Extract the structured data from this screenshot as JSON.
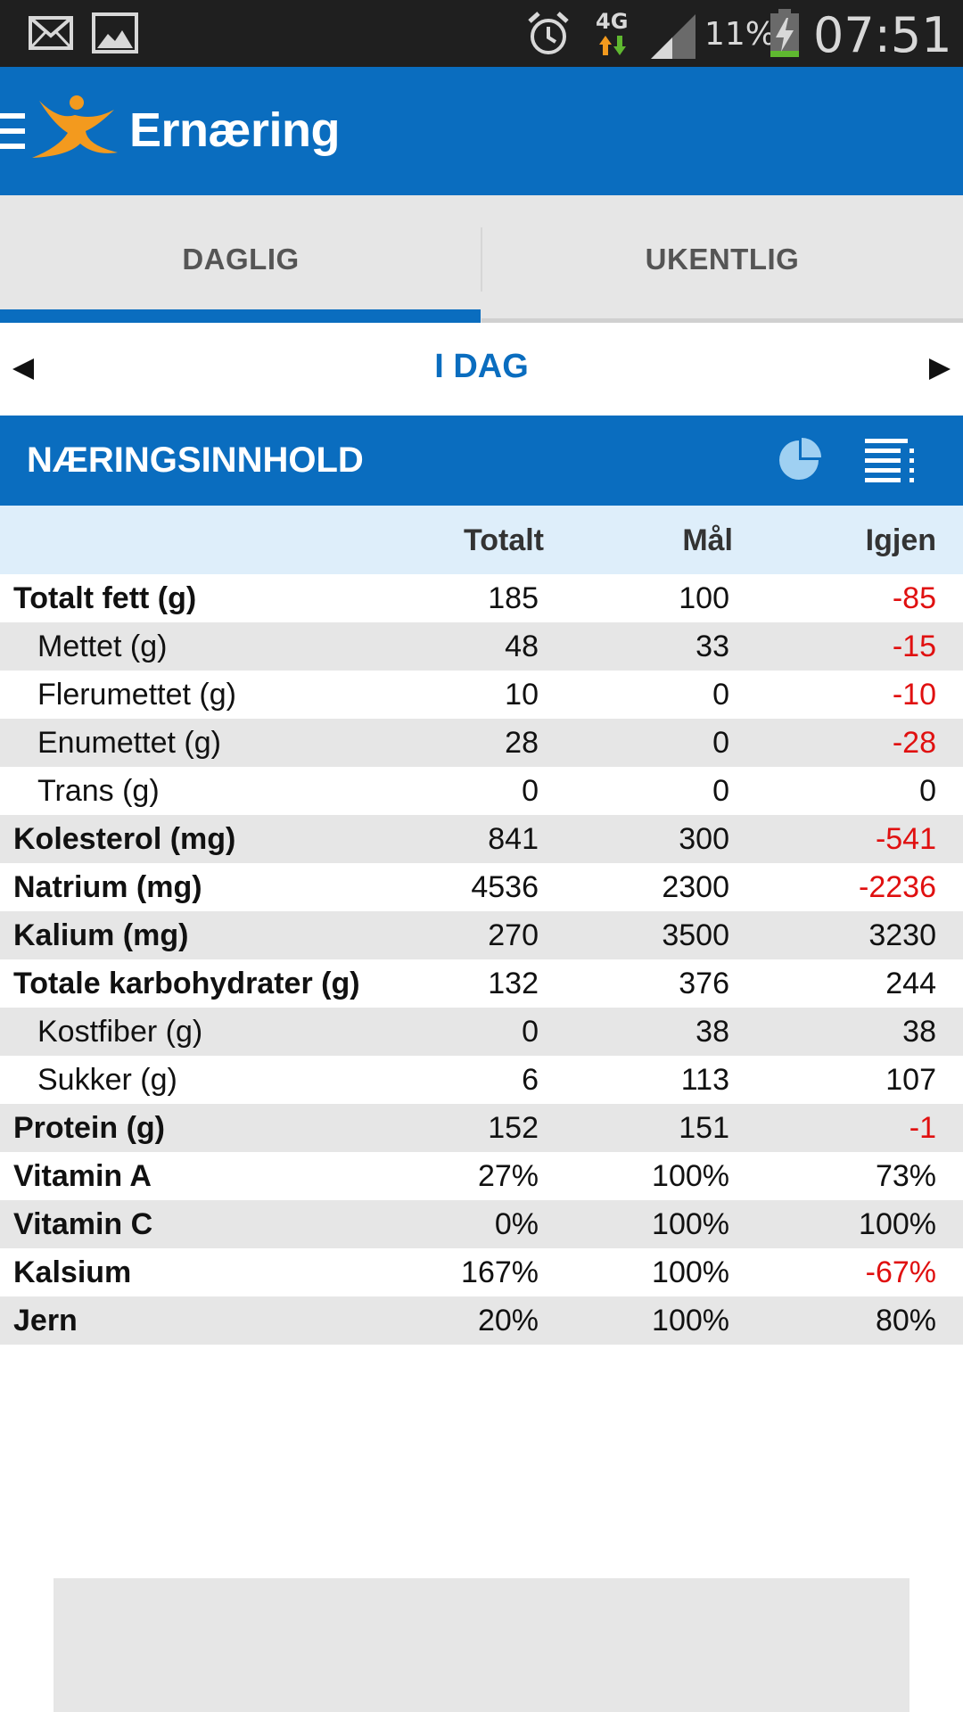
{
  "status_bar": {
    "network": "4G",
    "battery": "11%",
    "time": "07:51",
    "icons": [
      "mail-icon",
      "image-icon",
      "alarm-icon",
      "data-arrows-icon",
      "signal-icon",
      "battery-charging-icon"
    ]
  },
  "app_bar": {
    "title": "Ernæring",
    "icons": [
      "hamburger-icon",
      "myfitnesspal-logo"
    ]
  },
  "tabs": [
    {
      "label": "DAGLIG",
      "selected": true
    },
    {
      "label": "UKENTLIG",
      "selected": false
    }
  ],
  "date_nav": {
    "label": "I DAG"
  },
  "section": {
    "title": "NÆRINGSINNHOLD",
    "icons": [
      "pie-chart-icon",
      "list-view-icon"
    ]
  },
  "table": {
    "headers": {
      "totalt": "Totalt",
      "mal": "Mål",
      "igjen": "Igjen"
    },
    "rows": [
      {
        "name": "Totalt fett (g)",
        "total": "185",
        "goal": "100",
        "left": "-85",
        "sub": false
      },
      {
        "name": "Mettet (g)",
        "total": "48",
        "goal": "33",
        "left": "-15",
        "sub": true
      },
      {
        "name": "Flerumettet (g)",
        "total": "10",
        "goal": "0",
        "left": "-10",
        "sub": true
      },
      {
        "name": "Enumettet (g)",
        "total": "28",
        "goal": "0",
        "left": "-28",
        "sub": true
      },
      {
        "name": "Trans (g)",
        "total": "0",
        "goal": "0",
        "left": "0",
        "sub": true
      },
      {
        "name": "Kolesterol (mg)",
        "total": "841",
        "goal": "300",
        "left": "-541",
        "sub": false
      },
      {
        "name": "Natrium (mg)",
        "total": "4536",
        "goal": "2300",
        "left": "-2236",
        "sub": false
      },
      {
        "name": "Kalium (mg)",
        "total": "270",
        "goal": "3500",
        "left": "3230",
        "sub": false
      },
      {
        "name": "Totale karbohydrater (g)",
        "total": "132",
        "goal": "376",
        "left": "244",
        "sub": false
      },
      {
        "name": "Kostfiber (g)",
        "total": "0",
        "goal": "38",
        "left": "38",
        "sub": true
      },
      {
        "name": "Sukker (g)",
        "total": "6",
        "goal": "113",
        "left": "107",
        "sub": true
      },
      {
        "name": "Protein (g)",
        "total": "152",
        "goal": "151",
        "left": "-1",
        "sub": false
      },
      {
        "name": "Vitamin A",
        "total": "27%",
        "goal": "100%",
        "left": "73%",
        "sub": false
      },
      {
        "name": "Vitamin C",
        "total": "0%",
        "goal": "100%",
        "left": "100%",
        "sub": false
      },
      {
        "name": "Kalsium",
        "total": "167%",
        "goal": "100%",
        "left": "-67%",
        "sub": false
      },
      {
        "name": "Jern",
        "total": "20%",
        "goal": "100%",
        "left": "80%",
        "sub": false
      }
    ]
  },
  "colors": {
    "primary": "#0a6dbf",
    "negative": "#e01010",
    "header_row": "#deeefa",
    "alt_row": "#e6e6e6",
    "logo": "#f39a1e"
  }
}
